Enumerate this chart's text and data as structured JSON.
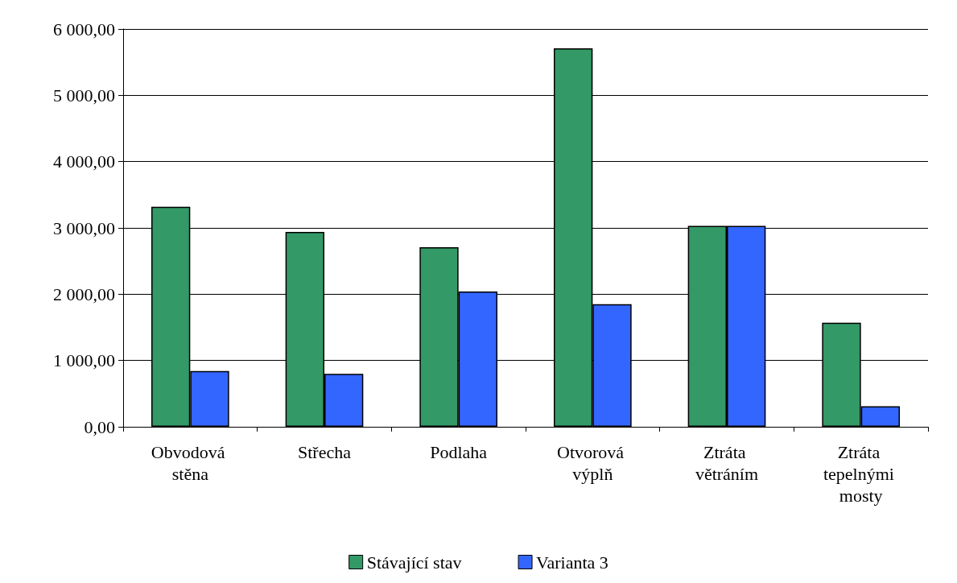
{
  "chart_data": {
    "type": "bar",
    "categories": [
      "Obvodová stěna",
      "Střecha",
      "Podlaha",
      "Otvorová výplň",
      "Ztráta větráním",
      "Ztráta tepelnými mosty"
    ],
    "series": [
      {
        "name": "Stávající stav",
        "color": "#339966",
        "values": [
          3320,
          2940,
          2710,
          5710,
          3030,
          1570
        ]
      },
      {
        "name": "Varianta 3",
        "color": "#3366ff",
        "values": [
          840,
          800,
          2040,
          1850,
          3030,
          310
        ]
      }
    ],
    "ylim": [
      0,
      6000
    ],
    "yticks": [
      {
        "value": 0,
        "label": "0,00"
      },
      {
        "value": 1000,
        "label": "1 000,00"
      },
      {
        "value": 2000,
        "label": "2 000,00"
      },
      {
        "value": 3000,
        "label": "3 000,00"
      },
      {
        "value": 4000,
        "label": "4 000,00"
      },
      {
        "value": 5000,
        "label": "5 000,00"
      },
      {
        "value": 6000,
        "label": "6 000,00"
      }
    ],
    "grid": "y",
    "legend": "bottom"
  }
}
